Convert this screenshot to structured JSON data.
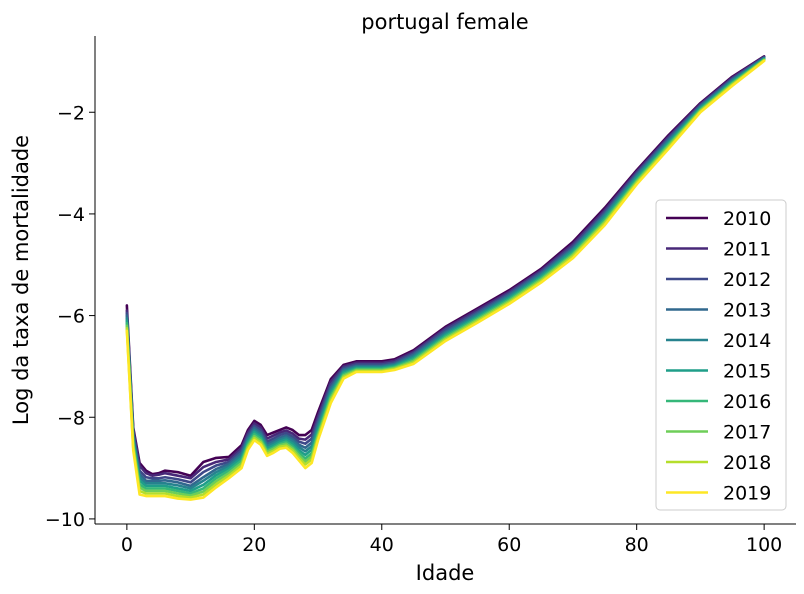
{
  "chart_data": {
    "type": "line",
    "title": "portugal female",
    "xlabel": "Idade",
    "ylabel": "Log da taxa de mortalidade",
    "xlim": [
      -5,
      105
    ],
    "ylim": [
      -10.1,
      -0.5
    ],
    "xticks": [
      0,
      20,
      40,
      60,
      80,
      100
    ],
    "xtick_labels": [
      "0",
      "20",
      "40",
      "60",
      "80",
      "100"
    ],
    "yticks": [
      -10,
      -8,
      -6,
      -4,
      -2
    ],
    "ytick_labels": [
      "−10",
      "−8",
      "−6",
      "−4",
      "−2"
    ],
    "grid": false,
    "legend_position": "lower-right",
    "x": [
      0,
      1,
      2,
      3,
      4,
      5,
      6,
      8,
      10,
      12,
      14,
      16,
      18,
      19,
      20,
      21,
      22,
      23,
      24,
      25,
      26,
      27,
      28,
      29,
      30,
      32,
      34,
      36,
      38,
      40,
      42,
      45,
      50,
      55,
      60,
      65,
      70,
      75,
      80,
      85,
      90,
      95,
      100
    ],
    "series": [
      {
        "name": "2010",
        "color": "#440154",
        "values": [
          -5.8,
          -8.2,
          -8.9,
          -9.05,
          -9.12,
          -9.1,
          -9.05,
          -9.08,
          -9.15,
          -8.88,
          -8.8,
          -8.78,
          -8.55,
          -8.25,
          -8.07,
          -8.15,
          -8.35,
          -8.3,
          -8.25,
          -8.2,
          -8.25,
          -8.35,
          -8.35,
          -8.25,
          -7.9,
          -7.25,
          -6.97,
          -6.9,
          -6.9,
          -6.9,
          -6.86,
          -6.68,
          -6.22,
          -5.86,
          -5.5,
          -5.08,
          -4.55,
          -3.88,
          -3.14,
          -2.45,
          -1.82,
          -1.3,
          -0.9
        ]
      },
      {
        "name": "2011",
        "color": "#482878",
        "values": [
          -5.9,
          -8.25,
          -8.95,
          -9.1,
          -9.15,
          -9.13,
          -9.1,
          -9.15,
          -9.2,
          -8.98,
          -8.88,
          -8.83,
          -8.6,
          -8.3,
          -8.12,
          -8.2,
          -8.42,
          -8.36,
          -8.3,
          -8.26,
          -8.32,
          -8.42,
          -8.44,
          -8.34,
          -7.98,
          -7.3,
          -7.0,
          -6.93,
          -6.93,
          -6.93,
          -6.89,
          -6.71,
          -6.25,
          -5.89,
          -5.53,
          -5.11,
          -4.59,
          -3.92,
          -3.17,
          -2.48,
          -1.84,
          -1.32,
          -0.91
        ]
      },
      {
        "name": "2012",
        "color": "#3e4989",
        "values": [
          -5.95,
          -8.3,
          -9.05,
          -9.18,
          -9.2,
          -9.2,
          -9.18,
          -9.22,
          -9.28,
          -9.08,
          -8.95,
          -8.88,
          -8.65,
          -8.35,
          -8.17,
          -8.25,
          -8.48,
          -8.42,
          -8.35,
          -8.31,
          -8.38,
          -8.48,
          -8.52,
          -8.42,
          -8.05,
          -7.36,
          -7.03,
          -6.96,
          -6.96,
          -6.96,
          -6.92,
          -6.74,
          -6.28,
          -5.93,
          -5.56,
          -5.14,
          -4.63,
          -3.96,
          -3.2,
          -2.51,
          -1.86,
          -1.34,
          -0.92
        ]
      },
      {
        "name": "2013",
        "color": "#31688e",
        "values": [
          -6.0,
          -8.35,
          -9.12,
          -9.25,
          -9.25,
          -9.25,
          -9.24,
          -9.28,
          -9.35,
          -9.18,
          -9.02,
          -8.92,
          -8.7,
          -8.4,
          -8.21,
          -8.3,
          -8.53,
          -8.47,
          -8.4,
          -8.36,
          -8.43,
          -8.54,
          -8.6,
          -8.5,
          -8.12,
          -7.42,
          -7.06,
          -6.99,
          -6.99,
          -6.99,
          -6.95,
          -6.77,
          -6.32,
          -5.96,
          -5.59,
          -5.17,
          -4.67,
          -4.0,
          -3.23,
          -2.54,
          -1.88,
          -1.36,
          -0.93
        ]
      },
      {
        "name": "2014",
        "color": "#26828e",
        "values": [
          -6.05,
          -8.4,
          -9.18,
          -9.3,
          -9.3,
          -9.3,
          -9.3,
          -9.34,
          -9.4,
          -9.25,
          -9.08,
          -8.96,
          -8.75,
          -8.44,
          -8.25,
          -8.34,
          -8.57,
          -8.51,
          -8.44,
          -8.4,
          -8.47,
          -8.59,
          -8.67,
          -8.57,
          -8.18,
          -7.47,
          -7.09,
          -7.01,
          -7.01,
          -7.01,
          -6.97,
          -6.8,
          -6.35,
          -5.99,
          -5.62,
          -5.2,
          -4.7,
          -4.03,
          -3.26,
          -2.57,
          -1.9,
          -1.38,
          -0.94
        ]
      },
      {
        "name": "2015",
        "color": "#1f9e89",
        "values": [
          -6.1,
          -8.45,
          -9.25,
          -9.35,
          -9.35,
          -9.35,
          -9.35,
          -9.4,
          -9.45,
          -9.33,
          -9.14,
          -9.0,
          -8.8,
          -8.48,
          -8.29,
          -8.38,
          -8.61,
          -8.55,
          -8.48,
          -8.44,
          -8.52,
          -8.65,
          -8.74,
          -8.64,
          -8.24,
          -7.52,
          -7.12,
          -7.03,
          -7.03,
          -7.03,
          -6.99,
          -6.83,
          -6.38,
          -6.02,
          -5.65,
          -5.23,
          -4.73,
          -4.07,
          -3.29,
          -2.6,
          -1.92,
          -1.4,
          -0.95
        ]
      },
      {
        "name": "2016",
        "color": "#35b779",
        "values": [
          -6.15,
          -8.5,
          -9.32,
          -9.4,
          -9.4,
          -9.4,
          -9.4,
          -9.45,
          -9.5,
          -9.4,
          -9.2,
          -9.05,
          -8.85,
          -8.52,
          -8.33,
          -8.42,
          -8.65,
          -8.59,
          -8.52,
          -8.48,
          -8.57,
          -8.7,
          -8.81,
          -8.71,
          -8.3,
          -7.57,
          -7.15,
          -7.05,
          -7.05,
          -7.05,
          -7.01,
          -6.86,
          -6.41,
          -6.05,
          -5.68,
          -5.26,
          -4.77,
          -4.11,
          -3.33,
          -2.63,
          -1.94,
          -1.42,
          -0.96
        ]
      },
      {
        "name": "2017",
        "color": "#6ece58",
        "values": [
          -6.2,
          -8.55,
          -9.38,
          -9.45,
          -9.45,
          -9.45,
          -9.45,
          -9.5,
          -9.54,
          -9.46,
          -9.26,
          -9.1,
          -8.9,
          -8.56,
          -8.37,
          -8.46,
          -8.68,
          -8.62,
          -8.55,
          -8.52,
          -8.61,
          -8.75,
          -8.87,
          -8.77,
          -8.35,
          -7.62,
          -7.18,
          -7.07,
          -7.07,
          -7.07,
          -7.03,
          -6.89,
          -6.44,
          -6.08,
          -5.71,
          -5.29,
          -4.8,
          -4.15,
          -3.36,
          -2.66,
          -1.96,
          -1.44,
          -0.97
        ]
      },
      {
        "name": "2018",
        "color": "#b5de2b",
        "values": [
          -6.25,
          -8.6,
          -9.45,
          -9.5,
          -9.5,
          -9.5,
          -9.5,
          -9.55,
          -9.58,
          -9.52,
          -9.32,
          -9.15,
          -8.95,
          -8.6,
          -8.41,
          -8.5,
          -8.72,
          -8.66,
          -8.58,
          -8.56,
          -8.65,
          -8.8,
          -8.93,
          -8.83,
          -8.4,
          -7.67,
          -7.21,
          -7.09,
          -7.09,
          -7.09,
          -7.05,
          -6.92,
          -6.47,
          -6.11,
          -5.74,
          -5.32,
          -4.83,
          -4.18,
          -3.39,
          -2.69,
          -1.98,
          -1.46,
          -0.98
        ]
      },
      {
        "name": "2019",
        "color": "#fde725",
        "values": [
          -6.3,
          -8.65,
          -9.52,
          -9.55,
          -9.55,
          -9.55,
          -9.55,
          -9.6,
          -9.62,
          -9.58,
          -9.38,
          -9.2,
          -9.0,
          -8.64,
          -8.45,
          -8.54,
          -8.76,
          -8.7,
          -8.62,
          -8.6,
          -8.7,
          -8.85,
          -9.0,
          -8.9,
          -8.45,
          -7.72,
          -7.24,
          -7.11,
          -7.11,
          -7.11,
          -7.07,
          -6.95,
          -6.5,
          -6.14,
          -5.77,
          -5.35,
          -4.87,
          -4.22,
          -3.42,
          -2.72,
          -2.0,
          -1.48,
          -0.99
        ]
      }
    ]
  }
}
